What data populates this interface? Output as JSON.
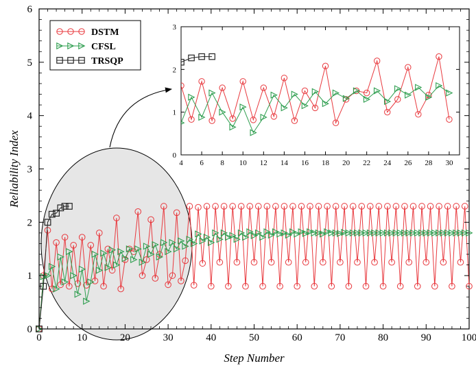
{
  "colors": {
    "DSTM": "#e8383d",
    "CFSL": "#2e9e4f",
    "TRSQP": "#222222",
    "ellipse_fill": "#e6e6e6"
  },
  "chart_data": {
    "type": "line",
    "xlabel": "Step Number",
    "ylabel": "Reliability Index",
    "xlim": [
      0,
      100
    ],
    "ylim": [
      0,
      6
    ],
    "xticks": [
      0,
      10,
      20,
      30,
      40,
      50,
      60,
      70,
      80,
      90,
      100
    ],
    "yticks": [
      0,
      1,
      2,
      3,
      4,
      5,
      6
    ],
    "grid": false,
    "legend_position": "top-left",
    "series": [
      {
        "name": "DSTM",
        "marker": "circle",
        "x": [
          0,
          1,
          2,
          3,
          4,
          5,
          6,
          7,
          8,
          9,
          10,
          11,
          12,
          13,
          14,
          15,
          16,
          17,
          18,
          19,
          20,
          21,
          22,
          23,
          24,
          25,
          26,
          27,
          28,
          29,
          30,
          31,
          32,
          33,
          34,
          35,
          36,
          37,
          38,
          39,
          40,
          41,
          42,
          43,
          44,
          45,
          46,
          47,
          48,
          49,
          50,
          51,
          52,
          53,
          54,
          55,
          56,
          57,
          58,
          59,
          60,
          61,
          62,
          63,
          64,
          65,
          66,
          67,
          68,
          69,
          70,
          71,
          72,
          73,
          74,
          75,
          76,
          77,
          78,
          79,
          80,
          81,
          82,
          83,
          84,
          85,
          86,
          87,
          88,
          89,
          90,
          91,
          92,
          93,
          94,
          95,
          96,
          97,
          98,
          99,
          100
        ],
        "y": [
          0,
          1.0,
          1.85,
          0.75,
          1.62,
          0.83,
          1.72,
          0.8,
          1.57,
          0.85,
          1.72,
          0.82,
          1.57,
          0.9,
          1.8,
          0.8,
          1.5,
          1.1,
          2.08,
          0.75,
          1.3,
          1.5,
          1.45,
          2.2,
          1.0,
          1.3,
          2.05,
          0.95,
          1.4,
          2.3,
          0.83,
          1.0,
          2.18,
          0.9,
          1.28,
          2.3,
          0.82,
          2.28,
          1.23,
          2.3,
          0.8,
          2.3,
          1.25,
          2.3,
          0.8,
          2.3,
          1.25,
          2.3,
          0.8,
          2.3,
          1.25,
          2.3,
          0.8,
          2.3,
          1.25,
          2.3,
          0.8,
          2.3,
          1.25,
          2.3,
          0.8,
          2.3,
          1.25,
          2.3,
          0.8,
          2.3,
          1.25,
          2.3,
          0.8,
          2.3,
          1.25,
          2.3,
          0.8,
          2.3,
          1.25,
          2.3,
          0.8,
          2.3,
          1.25,
          2.3,
          0.8,
          2.3,
          1.25,
          2.3,
          0.8,
          2.3,
          1.25,
          2.3,
          0.8,
          2.3,
          1.25,
          2.3,
          0.8,
          2.3,
          1.25,
          2.3,
          0.8,
          2.3,
          1.25,
          2.3,
          0.8
        ]
      },
      {
        "name": "CFSL",
        "marker": "triangle-right",
        "x": [
          0,
          1,
          2,
          3,
          4,
          5,
          6,
          7,
          8,
          9,
          10,
          11,
          12,
          13,
          14,
          15,
          16,
          17,
          18,
          19,
          20,
          21,
          22,
          23,
          24,
          25,
          26,
          27,
          28,
          29,
          30,
          31,
          32,
          33,
          34,
          35,
          36,
          37,
          38,
          39,
          40,
          41,
          42,
          43,
          44,
          45,
          46,
          47,
          48,
          49,
          50,
          51,
          52,
          53,
          54,
          55,
          56,
          57,
          58,
          59,
          60,
          61,
          62,
          63,
          64,
          65,
          66,
          67,
          68,
          69,
          70,
          71,
          72,
          73,
          74,
          75,
          76,
          77,
          78,
          79,
          80,
          81,
          82,
          83,
          84,
          85,
          86,
          87,
          88,
          89,
          90,
          91,
          92,
          93,
          94,
          95,
          96,
          97,
          98,
          99,
          100
        ],
        "y": [
          0,
          0.98,
          1.0,
          1.17,
          0.75,
          1.35,
          0.88,
          1.45,
          1.0,
          0.65,
          1.12,
          0.52,
          0.88,
          1.4,
          1.1,
          1.42,
          1.15,
          1.48,
          1.2,
          1.45,
          1.32,
          1.5,
          1.3,
          1.5,
          1.25,
          1.55,
          1.4,
          1.58,
          1.35,
          1.62,
          1.45,
          1.62,
          1.5,
          1.65,
          1.55,
          1.68,
          1.6,
          1.78,
          1.65,
          1.72,
          1.62,
          1.8,
          1.68,
          1.8,
          1.72,
          1.75,
          1.68,
          1.8,
          1.72,
          1.82,
          1.75,
          1.8,
          1.72,
          1.82,
          1.76,
          1.82,
          1.78,
          1.8,
          1.76,
          1.82,
          1.78,
          1.82,
          1.79,
          1.82,
          1.8,
          1.8,
          1.78,
          1.82,
          1.8,
          1.8,
          1.79,
          1.81,
          1.8,
          1.8,
          1.8,
          1.8,
          1.8,
          1.8,
          1.8,
          1.8,
          1.8,
          1.8,
          1.8,
          1.8,
          1.8,
          1.8,
          1.8,
          1.8,
          1.8,
          1.8,
          1.8,
          1.8,
          1.8,
          1.8,
          1.8,
          1.8,
          1.8,
          1.8,
          1.8,
          1.8,
          1.8
        ]
      },
      {
        "name": "TRSQP",
        "marker": "square",
        "x": [
          0,
          1,
          2,
          3,
          4,
          5,
          6,
          7
        ],
        "y": [
          0,
          0.8,
          2.0,
          2.15,
          2.17,
          2.27,
          2.3,
          2.3
        ]
      }
    ],
    "inset": {
      "xlim": [
        4,
        31
      ],
      "ylim": [
        0,
        3
      ],
      "xticks": [
        4,
        6,
        8,
        10,
        12,
        14,
        16,
        18,
        20,
        22,
        24,
        26,
        28,
        30
      ],
      "yticks": [
        0,
        1,
        2,
        3
      ],
      "x_range_shown": [
        4,
        30
      ],
      "source_x_range": [
        4,
        33
      ]
    }
  }
}
